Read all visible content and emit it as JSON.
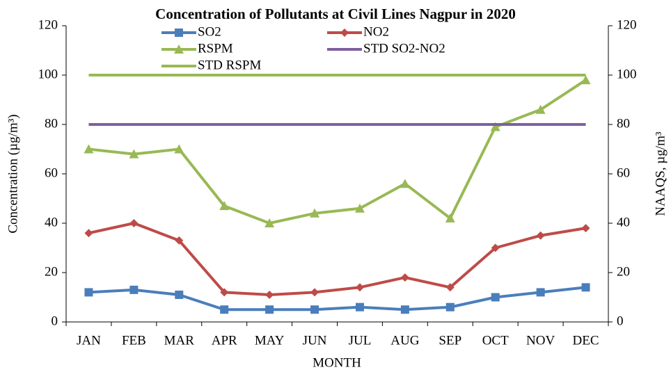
{
  "chart_data": {
    "type": "line",
    "title": "Concentration of Pollutants at Civil Lines Nagpur in 2020",
    "x_label": "MONTH",
    "y_label": "Concentration (µg/m³)",
    "y2_label": "NAAQS, µg/m³",
    "categories": [
      "JAN",
      "FEB",
      "MAR",
      "APR",
      "MAY",
      "JUN",
      "JUL",
      "AUG",
      "SEP",
      "OCT",
      "NOV",
      "DEC"
    ],
    "series": [
      {
        "name": "SO2",
        "color": "#4a7ebb",
        "marker": "square",
        "values": [
          12,
          13,
          11,
          5,
          5,
          5,
          6,
          5,
          6,
          10,
          12,
          14
        ]
      },
      {
        "name": "NO2",
        "color": "#be4b48",
        "marker": "diamond",
        "values": [
          36,
          40,
          33,
          12,
          11,
          12,
          14,
          18,
          14,
          30,
          35,
          38
        ]
      },
      {
        "name": "RSPM",
        "color": "#98b954",
        "marker": "triangle",
        "values": [
          70,
          68,
          70,
          47,
          40,
          44,
          46,
          56,
          42,
          79,
          86,
          98
        ]
      },
      {
        "name": "STD SO2-NO2",
        "color": "#7d60a0",
        "marker": "none",
        "values": [
          80,
          80,
          80,
          80,
          80,
          80,
          80,
          80,
          80,
          80,
          80,
          80
        ]
      },
      {
        "name": "STD RSPM",
        "color": "#98b954",
        "marker": "none",
        "values": [
          100,
          100,
          100,
          100,
          100,
          100,
          100,
          100,
          100,
          100,
          100,
          100
        ]
      }
    ],
    "ylim": [
      0,
      120
    ],
    "yticks": [
      0,
      20,
      40,
      60,
      80,
      100,
      120
    ],
    "y2lim": [
      0,
      120
    ],
    "y2ticks": [
      0,
      20,
      40,
      60,
      80,
      100,
      120
    ],
    "grid": false
  }
}
